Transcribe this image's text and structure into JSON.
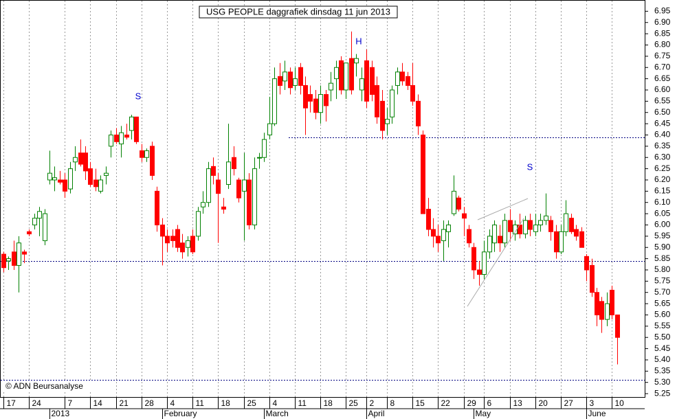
{
  "chart_data": {
    "type": "candlestick",
    "title": "USG PEOPLE daggrafiek dinsdag 11 jun 2013",
    "source": "© ADN Beursanalyse",
    "annotations": [
      "S",
      "H",
      "S"
    ],
    "up_color": "#008000",
    "down_color": "#ff0000",
    "level_color": "#000080",
    "grid": "x",
    "ylim": [
      5.235,
      7.0
    ],
    "yticks": [
      {
        "value": 5.25,
        "label": "5.25"
      },
      {
        "value": 5.3,
        "label": "5.30"
      },
      5.35,
      {
        "value": 5.4,
        "label": "5.40"
      },
      5.45,
      {
        "value": 5.5,
        "label": "5.50"
      },
      5.55,
      {
        "value": 5.6,
        "label": "5.60"
      },
      5.65,
      {
        "value": 5.7,
        "label": "5.70"
      },
      5.75,
      {
        "value": 5.8,
        "label": "5.80"
      },
      5.85,
      {
        "value": 5.9,
        "label": "5.90"
      },
      5.95,
      {
        "value": 6.0,
        "label": "6.00"
      },
      6.05,
      {
        "value": 6.1,
        "label": "6.10"
      },
      6.15,
      {
        "value": 6.2,
        "label": "6.20"
      },
      6.25,
      {
        "value": 6.3,
        "label": "6.30"
      },
      6.35,
      {
        "value": 6.4,
        "label": "6.40"
      },
      6.45,
      {
        "value": 6.5,
        "label": "6.50"
      },
      6.55,
      {
        "value": 6.6,
        "label": "6.60"
      },
      6.65,
      {
        "value": 6.7,
        "label": "6.70"
      },
      6.75,
      {
        "value": 6.8,
        "label": "6.80"
      },
      6.85,
      {
        "value": 6.9,
        "label": "6.90"
      },
      6.95
    ],
    "levels": [
      6.39,
      5.84,
      5.31
    ],
    "categories": [
      "17",
      null,
      null,
      null,
      null,
      "24",
      null,
      null,
      null,
      null,
      null,
      null,
      "7",
      null,
      null,
      null,
      null,
      "14",
      null,
      null,
      null,
      null,
      "21",
      null,
      null,
      null,
      null,
      "28",
      null,
      null,
      null,
      null,
      "4",
      null,
      null,
      null,
      null,
      "11",
      null,
      null,
      null,
      null,
      "18",
      null,
      null,
      null,
      null,
      "25",
      null,
      null,
      null,
      null,
      "4",
      null,
      null,
      null,
      null,
      "11",
      null,
      null,
      null,
      null,
      "18",
      null,
      null,
      null,
      null,
      "25",
      null,
      null,
      null,
      "2",
      null,
      null,
      null,
      "8",
      null,
      null,
      null,
      null,
      "15",
      null,
      null,
      null,
      null,
      "22",
      null,
      null,
      null,
      null,
      "29",
      null,
      null,
      null,
      "6",
      null,
      null,
      null,
      null,
      "13",
      null,
      null,
      null,
      null,
      "20",
      null,
      null,
      null,
      null,
      "27",
      null,
      null,
      null,
      null,
      "3",
      null,
      null,
      null,
      null,
      "10",
      null
    ],
    "months": [
      null,
      null,
      null,
      null,
      null,
      null,
      null,
      null,
      null,
      "2013",
      null,
      null,
      null,
      null,
      null,
      null,
      null,
      null,
      null,
      null,
      null,
      null,
      null,
      null,
      null,
      null,
      null,
      null,
      null,
      null,
      null,
      "February",
      null,
      null,
      null,
      null,
      null,
      null,
      null,
      null,
      null,
      null,
      null,
      null,
      null,
      null,
      null,
      null,
      null,
      null,
      null,
      "March",
      null,
      null,
      null,
      null,
      null,
      null,
      null,
      null,
      null,
      null,
      null,
      null,
      null,
      null,
      null,
      null,
      null,
      null,
      null,
      "April",
      null,
      null,
      null,
      null,
      null,
      null,
      null,
      null,
      null,
      null,
      null,
      null,
      null,
      null,
      null,
      null,
      null,
      null,
      null,
      null,
      "May",
      null,
      null,
      null,
      null,
      null,
      null,
      null,
      null,
      null,
      null,
      null,
      null,
      null,
      null,
      null,
      null,
      null,
      null,
      null,
      null,
      null,
      "June",
      null,
      null,
      null,
      null,
      null,
      null
    ],
    "candles": [
      [
        5.87,
        5.88,
        5.79,
        5.81
      ],
      [
        5.84,
        5.86,
        5.8,
        5.85
      ],
      [
        5.88,
        5.93,
        5.8,
        5.82
      ],
      [
        5.82,
        5.95,
        5.7,
        5.92
      ],
      [
        5.88,
        5.89,
        5.83,
        5.87
      ],
      [
        5.97,
        5.98,
        5.95,
        5.96
      ],
      [
        6.0,
        6.05,
        5.98,
        6.03
      ],
      [
        6.03,
        6.08,
        5.95,
        6.06
      ],
      [
        5.93,
        6.07,
        5.91,
        6.05
      ],
      [
        6.2,
        6.33,
        6.18,
        6.23
      ],
      [
        6.2,
        6.26,
        6.15,
        6.21
      ],
      [
        6.2,
        6.24,
        6.18,
        6.19
      ],
      [
        6.2,
        6.23,
        6.12,
        6.15
      ],
      [
        6.16,
        6.28,
        6.14,
        6.25
      ],
      [
        6.28,
        6.35,
        6.24,
        6.3
      ],
      [
        6.32,
        6.38,
        6.26,
        6.27
      ],
      [
        6.32,
        6.35,
        6.2,
        6.24
      ],
      [
        6.25,
        6.28,
        6.17,
        6.18
      ],
      [
        6.2,
        6.25,
        6.15,
        6.17
      ],
      [
        6.15,
        6.22,
        6.14,
        6.2
      ],
      [
        6.22,
        6.26,
        6.18,
        6.23
      ],
      [
        6.35,
        6.42,
        6.3,
        6.4
      ],
      [
        6.4,
        6.43,
        6.36,
        6.37
      ],
      [
        6.36,
        6.44,
        6.3,
        6.41
      ],
      [
        6.4,
        6.45,
        6.38,
        6.39
      ],
      [
        6.42,
        6.49,
        6.38,
        6.48
      ],
      [
        6.48,
        6.48,
        6.36,
        6.37
      ],
      [
        6.33,
        6.36,
        6.28,
        6.3
      ],
      [
        6.3,
        6.34,
        6.28,
        6.33
      ],
      [
        6.35,
        6.37,
        6.2,
        6.22
      ],
      [
        6.15,
        6.17,
        5.97,
        6.0
      ],
      [
        6.0,
        6.03,
        5.82,
        5.95
      ],
      [
        5.95,
        5.98,
        5.88,
        5.92
      ],
      [
        5.95,
        5.98,
        5.9,
        5.93
      ],
      [
        5.98,
        6.0,
        5.88,
        5.9
      ],
      [
        5.92,
        5.96,
        5.85,
        5.88
      ],
      [
        5.9,
        5.95,
        5.86,
        5.93
      ],
      [
        5.95,
        5.98,
        5.87,
        5.88
      ],
      [
        5.95,
        6.08,
        5.93,
        6.06
      ],
      [
        6.08,
        6.15,
        6.05,
        6.1
      ],
      [
        6.1,
        6.28,
        6.08,
        6.25
      ],
      [
        6.26,
        6.3,
        6.18,
        6.22
      ],
      [
        6.2,
        6.23,
        5.92,
        6.14
      ],
      [
        6.08,
        6.12,
        6.05,
        6.07
      ],
      [
        6.18,
        6.45,
        6.16,
        6.28
      ],
      [
        6.3,
        6.35,
        6.22,
        6.25
      ],
      [
        6.2,
        6.21,
        6.1,
        6.12
      ],
      [
        6.15,
        6.32,
        5.93,
        6.2
      ],
      [
        6.2,
        6.23,
        5.98,
        6.0
      ],
      [
        6.0,
        6.3,
        5.98,
        6.25
      ],
      [
        6.3,
        6.32,
        6.25,
        6.3
      ],
      [
        6.3,
        6.41,
        6.28,
        6.38
      ],
      [
        6.4,
        6.57,
        6.38,
        6.45
      ],
      [
        6.45,
        6.7,
        6.44,
        6.65
      ],
      [
        6.66,
        6.72,
        6.58,
        6.62
      ],
      [
        6.64,
        6.73,
        6.6,
        6.68
      ],
      [
        6.68,
        6.7,
        6.58,
        6.61
      ],
      [
        6.62,
        6.7,
        6.6,
        6.65
      ],
      [
        6.7,
        6.72,
        6.58,
        6.62
      ],
      [
        6.62,
        6.66,
        6.4,
        6.52
      ],
      [
        6.58,
        6.62,
        6.5,
        6.55
      ],
      [
        6.56,
        6.6,
        6.47,
        6.5
      ],
      [
        6.5,
        6.62,
        6.45,
        6.58
      ],
      [
        6.58,
        6.6,
        6.46,
        6.53
      ],
      [
        6.6,
        6.68,
        6.55,
        6.63
      ],
      [
        6.65,
        6.73,
        6.56,
        6.7
      ],
      [
        6.73,
        6.75,
        6.58,
        6.6
      ],
      [
        6.6,
        6.72,
        6.56,
        6.72
      ],
      [
        6.74,
        6.86,
        6.58,
        6.6
      ],
      [
        6.72,
        6.76,
        6.66,
        6.74
      ],
      [
        6.6,
        6.7,
        6.55,
        6.65
      ],
      [
        6.73,
        6.78,
        6.52,
        6.55
      ],
      [
        6.7,
        6.73,
        6.55,
        6.58
      ],
      [
        6.62,
        6.66,
        6.45,
        6.48
      ],
      [
        6.55,
        6.6,
        6.38,
        6.42
      ],
      [
        6.45,
        6.52,
        6.4,
        6.47
      ],
      [
        6.48,
        6.62,
        6.45,
        6.6
      ],
      [
        6.62,
        6.7,
        6.58,
        6.68
      ],
      [
        6.68,
        6.72,
        6.62,
        6.64
      ],
      [
        6.66,
        6.68,
        6.6,
        6.62
      ],
      [
        6.62,
        6.72,
        6.53,
        6.55
      ],
      [
        6.55,
        6.58,
        6.4,
        6.44
      ],
      [
        6.4,
        6.42,
        6.05,
        6.05
      ],
      [
        6.07,
        6.12,
        5.95,
        5.98
      ],
      [
        5.98,
        6.03,
        5.9,
        5.95
      ],
      [
        5.95,
        6.0,
        5.88,
        5.92
      ],
      [
        5.93,
        6.02,
        5.84,
        5.98
      ],
      [
        5.97,
        6.02,
        5.9,
        6.0
      ],
      [
        6.05,
        6.22,
        6.04,
        6.15
      ],
      [
        6.12,
        6.13,
        6.06,
        6.07
      ],
      [
        6.05,
        6.08,
        5.95,
        6.03
      ],
      [
        5.98,
        6.0,
        5.9,
        5.92
      ],
      [
        5.9,
        5.92,
        5.76,
        5.8
      ],
      [
        5.8,
        5.84,
        5.73,
        5.78
      ],
      [
        5.78,
        5.93,
        5.76,
        5.88
      ],
      [
        5.88,
        5.98,
        5.85,
        5.95
      ],
      [
        5.92,
        6.02,
        5.88,
        6.0
      ],
      [
        5.95,
        6.0,
        5.88,
        5.92
      ],
      [
        5.92,
        6.05,
        5.9,
        6.02
      ],
      [
        6.02,
        6.07,
        5.93,
        5.97
      ],
      [
        5.96,
        6.02,
        5.93,
        6.0
      ],
      [
        6.0,
        6.05,
        5.94,
        5.96
      ],
      [
        5.96,
        6.04,
        5.94,
        6.02
      ],
      [
        6.02,
        6.05,
        5.95,
        5.98
      ],
      [
        5.97,
        6.05,
        5.95,
        6.0
      ],
      [
        6.0,
        6.05,
        5.97,
        6.02
      ],
      [
        6.02,
        6.14,
        6.0,
        6.04
      ],
      [
        6.02,
        6.04,
        5.93,
        5.97
      ],
      [
        5.97,
        6.0,
        5.85,
        5.88
      ],
      [
        5.88,
        6.0,
        5.87,
        5.97
      ],
      [
        5.97,
        6.11,
        5.95,
        6.05
      ],
      [
        6.03,
        6.05,
        5.96,
        5.97
      ],
      [
        5.98,
        6.0,
        5.93,
        5.95
      ],
      [
        5.97,
        5.99,
        5.9,
        5.9
      ],
      [
        5.86,
        5.87,
        5.75,
        5.8
      ],
      [
        5.82,
        5.85,
        5.68,
        5.7
      ],
      [
        5.7,
        5.72,
        5.55,
        5.6
      ],
      [
        5.66,
        5.68,
        5.52,
        5.58
      ],
      [
        5.58,
        5.7,
        5.55,
        5.65
      ],
      [
        5.71,
        5.73,
        5.58,
        5.6
      ],
      [
        5.6,
        5.6,
        5.38,
        5.5
      ]
    ]
  }
}
